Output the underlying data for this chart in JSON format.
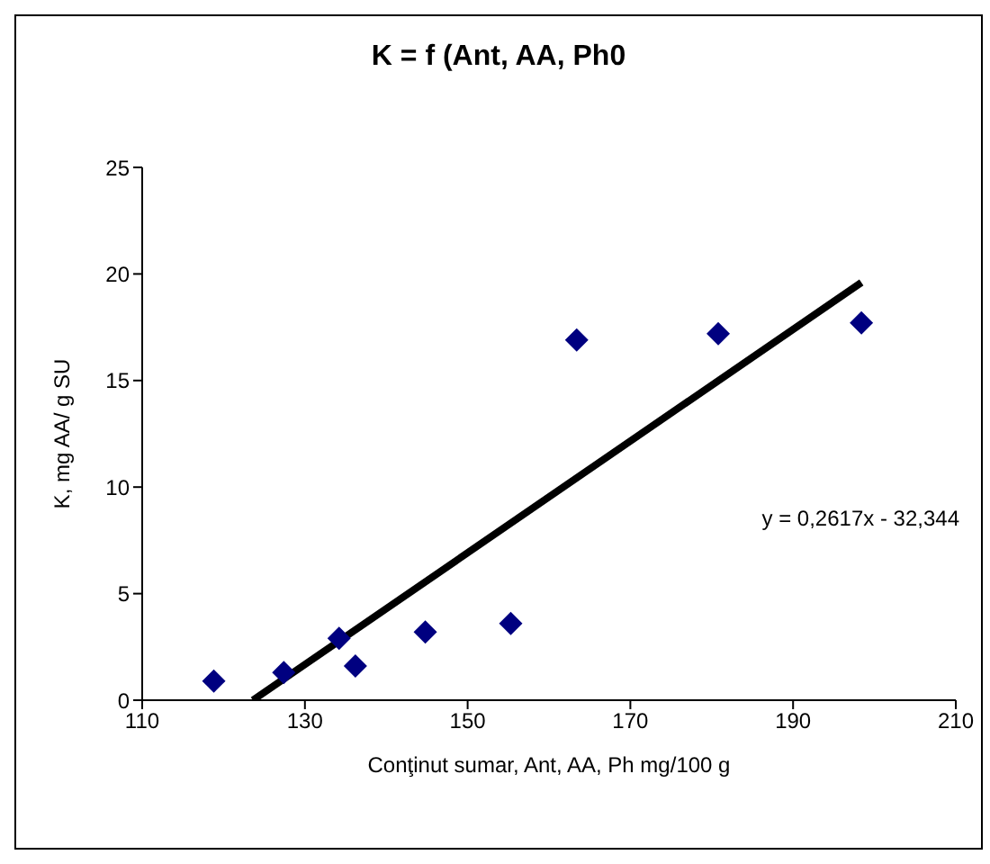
{
  "chart_data": {
    "type": "scatter",
    "title": "K = f (Ant, AA, Ph0",
    "xlabel": "Conţinut sumar, Ant, AA, Ph mg/100 g",
    "ylabel": "K, mg AA/ g SU",
    "x": [
      118.8,
      127.4,
      134.2,
      136.2,
      144.8,
      155.3,
      163.4,
      180.8,
      198.4
    ],
    "series": [
      {
        "color": "#000080",
        "marker": "diamond",
        "values": [
          0.9,
          1.3,
          2.9,
          1.6,
          3.2,
          3.6,
          16.9,
          17.2,
          17.7
        ]
      },
      {
        "type": "line",
        "color": "#000000",
        "x": [
          123.6,
          198.4
        ],
        "values": [
          0,
          19.6
        ]
      }
    ],
    "xlim": [
      110,
      210
    ],
    "xticks": [
      110,
      130,
      150,
      170,
      190,
      210
    ],
    "ylim": [
      0,
      25
    ],
    "yticks": [
      0,
      5,
      10,
      15,
      20,
      25
    ],
    "grid": false,
    "legend": false,
    "line_style": "solid",
    "annotations": [
      "y = 0,2617x - 32,344"
    ]
  }
}
